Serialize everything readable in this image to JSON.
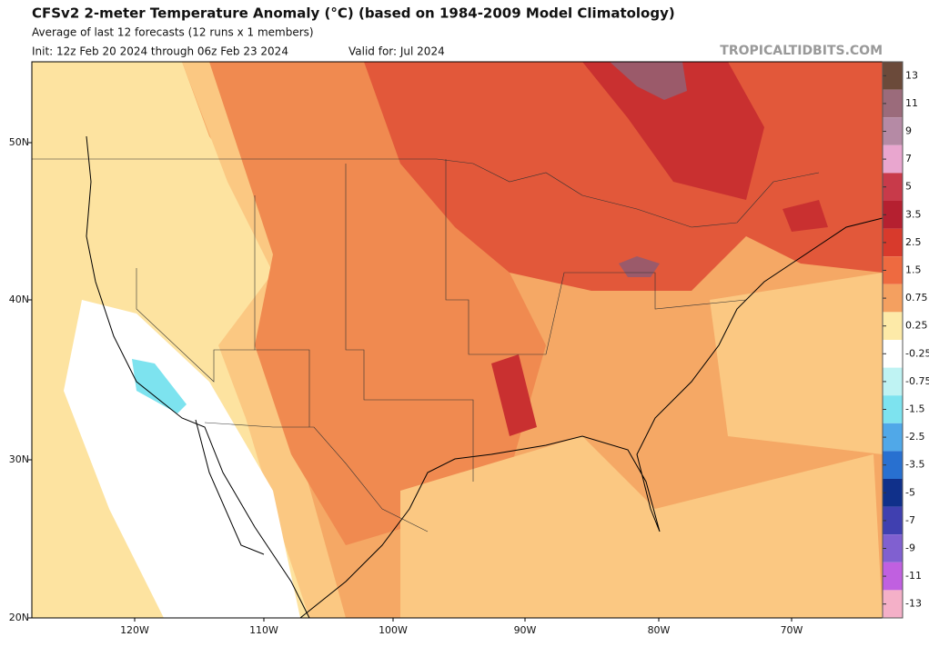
{
  "header": {
    "title": "CFSv2 2-meter Temperature Anomaly (°C) (based on 1984-2009 Model Climatology)",
    "subtitle": "Average of last 12 forecasts (12 runs x 1 members)",
    "init": "Init: 12z Feb 20 2024 through 06z Feb 23 2024",
    "valid": "Valid for: Jul 2024",
    "watermark": "TROPICALTIDBITS.COM"
  },
  "map": {
    "lat_labels": [
      "50N",
      "40N",
      "30N",
      "20N"
    ],
    "lon_labels": [
      "120W",
      "110W",
      "100W",
      "90W",
      "80W",
      "70W"
    ]
  },
  "colorbar": {
    "ticks": [
      13,
      11,
      9,
      7,
      5,
      3.5,
      2.5,
      1.5,
      0.75,
      0.25,
      -0.25,
      -0.75,
      -1.5,
      -2.5,
      -3.5,
      -5,
      -7,
      -9,
      -11,
      -13
    ],
    "colors": [
      "#6b4a3a",
      "#9b6b7b",
      "#b58aa5",
      "#e9a6cf",
      "#c83a4a",
      "#b52030",
      "#d83a2c",
      "#ee6a40",
      "#f4a060",
      "#fdeaa8",
      "#ffffff",
      "#bff3f3",
      "#7de3ef",
      "#50a8e8",
      "#2870d0",
      "#10308a",
      "#4040b0",
      "#8060d0",
      "#c060e0",
      "#f4b0c8"
    ]
  }
}
